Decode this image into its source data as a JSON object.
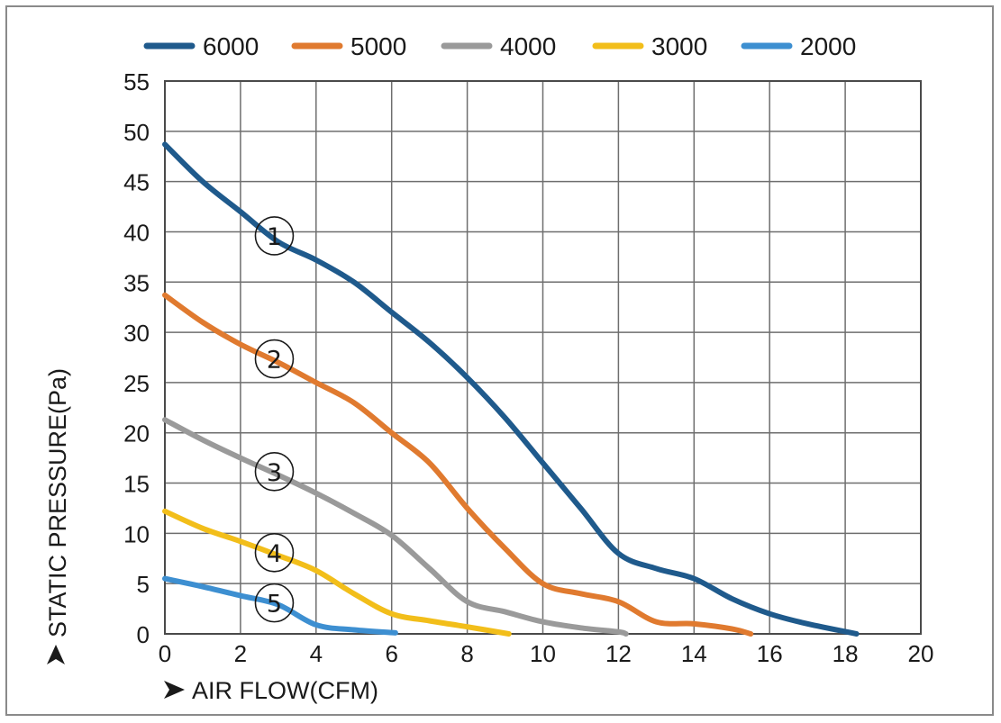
{
  "chart_data": {
    "type": "line",
    "xlabel": "AIR FLOW(CFM)",
    "ylabel": "STATIC PRESSURE(Pa)",
    "xlim": [
      0,
      20
    ],
    "ylim": [
      0,
      55
    ],
    "xticks": [
      0,
      2,
      4,
      6,
      8,
      10,
      12,
      14,
      16,
      18,
      20
    ],
    "yticks": [
      0,
      5,
      10,
      15,
      20,
      25,
      30,
      35,
      40,
      45,
      50,
      55
    ],
    "grid": true,
    "legend_position": "top",
    "series": [
      {
        "name": "6000",
        "color": "#1f5a8c",
        "marker": "①",
        "x": [
          0,
          1,
          2,
          3,
          4,
          5,
          6,
          7,
          8,
          9,
          10,
          11,
          12,
          13,
          14,
          15,
          16,
          17,
          18.3
        ],
        "y": [
          48.7,
          45,
          42,
          39,
          37.2,
          35,
          32,
          29,
          25.5,
          21.5,
          17,
          12.5,
          8,
          6.5,
          5.5,
          3.5,
          2,
          1,
          0
        ]
      },
      {
        "name": "5000",
        "color": "#e07a2f",
        "marker": "②",
        "x": [
          0,
          1,
          2,
          3,
          4,
          5,
          6,
          7,
          8,
          9,
          10,
          11,
          12,
          13,
          14,
          15,
          15.5
        ],
        "y": [
          33.7,
          31,
          28.8,
          27,
          25,
          23,
          20,
          17,
          12.5,
          8.5,
          5,
          4,
          3.2,
          1.2,
          1,
          0.5,
          0
        ]
      },
      {
        "name": "4000",
        "color": "#9a9a9a",
        "marker": "③",
        "x": [
          0,
          1,
          2,
          3,
          4,
          5,
          6,
          7,
          8,
          9,
          10,
          11,
          12,
          12.2
        ],
        "y": [
          21.3,
          19.3,
          17.5,
          15.8,
          14,
          12,
          9.8,
          6.5,
          3.2,
          2.2,
          1.2,
          0.6,
          0.2,
          0
        ]
      },
      {
        "name": "3000",
        "color": "#f2be1a",
        "marker": "④",
        "x": [
          0,
          1,
          2,
          3,
          4,
          5,
          6,
          7,
          8,
          9.1
        ],
        "y": [
          12.2,
          10.5,
          9.2,
          7.8,
          6.3,
          4,
          2,
          1.3,
          0.7,
          0
        ]
      },
      {
        "name": "2000",
        "color": "#3d8fd1",
        "marker": "⑤",
        "x": [
          0,
          1,
          2,
          3,
          4,
          5,
          6.1
        ],
        "y": [
          5.5,
          4.7,
          3.8,
          2.9,
          0.9,
          0.4,
          0.1
        ]
      }
    ]
  }
}
